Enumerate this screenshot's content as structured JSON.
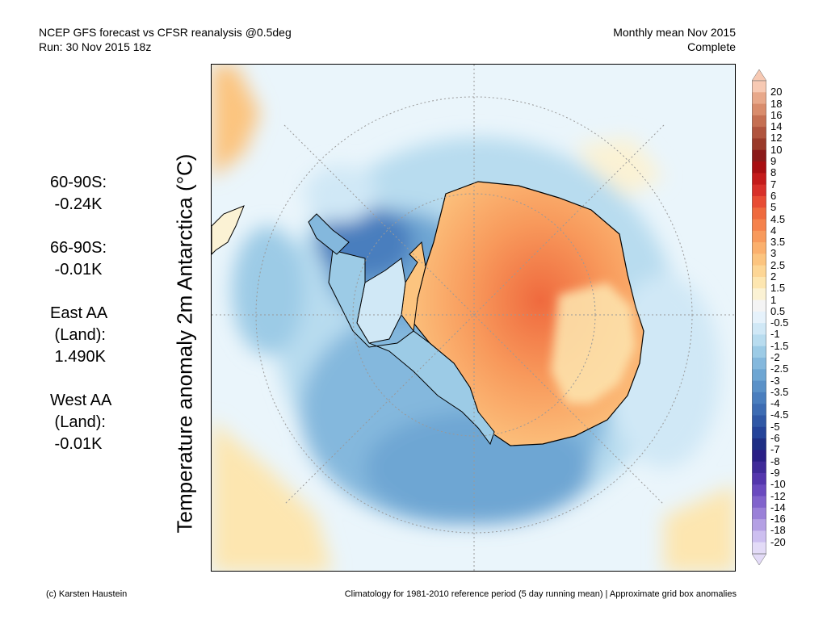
{
  "header": {
    "title_line1": "NCEP GFS forecast vs CFSR reanalysis @0.5deg",
    "title_line2": "Run: 30 Nov 2015 18z",
    "period_line1": "Monthly mean Nov 2015",
    "period_line2": "Complete"
  },
  "ylabel": "Temperature anomaly 2m Antarctica (°C)",
  "stats": [
    {
      "lines": [
        "60-90S:",
        " -0.24K"
      ]
    },
    {
      "lines": [
        "66-90S:",
        " -0.01K"
      ]
    },
    {
      "lines": [
        "East AA",
        " (Land):",
        " 1.490K"
      ]
    },
    {
      "lines": [
        "West AA",
        " (Land):",
        " -0.01K"
      ]
    }
  ],
  "colorbar": {
    "labels": [
      "20",
      "18",
      "16",
      "14",
      "12",
      "10",
      "9",
      "8",
      "7",
      "6",
      "5",
      "4.5",
      "4",
      "3.5",
      "3",
      "2.5",
      "2",
      "1.5",
      "1",
      "0.5",
      "-0.5",
      "-1",
      "-1.5",
      "-2",
      "-2.5",
      "-3",
      "-3.5",
      "-4",
      "-4.5",
      "-5",
      "-6",
      "-7",
      "-8",
      "-9",
      "-10",
      "-12",
      "-14",
      "-16",
      "-18",
      "-20"
    ],
    "colors": [
      "#f7c9b3",
      "#e8a88a",
      "#d98c6c",
      "#c56f52",
      "#b0543e",
      "#9a3a2a",
      "#8b1a1a",
      "#a80f12",
      "#c41b1b",
      "#d8302a",
      "#e84c34",
      "#ef6a3e",
      "#f5824c",
      "#f89a5c",
      "#fbb06d",
      "#fcc47f",
      "#fdd695",
      "#fde6b0",
      "#fbf2d4",
      "#f4f4f4",
      "#e6f2fb",
      "#d0e8f6",
      "#b8dcef",
      "#9ccbe6",
      "#84b8dd",
      "#6ea6d3",
      "#5a91c8",
      "#4a7ebe",
      "#3d6cb3",
      "#3058a6",
      "#25449a",
      "#1f2f85",
      "#2a1f86",
      "#3f2a99",
      "#5436ad",
      "#6a4abf",
      "#8163cc",
      "#9a80d8",
      "#b4a0e4",
      "#cdbff0",
      "#e3dbf7"
    ]
  },
  "footer": {
    "left": "(c) Karsten Haustein",
    "right": "Climatology for 1981-2010 reference period (5 day running mean) | Approximate grid box anomalies"
  }
}
